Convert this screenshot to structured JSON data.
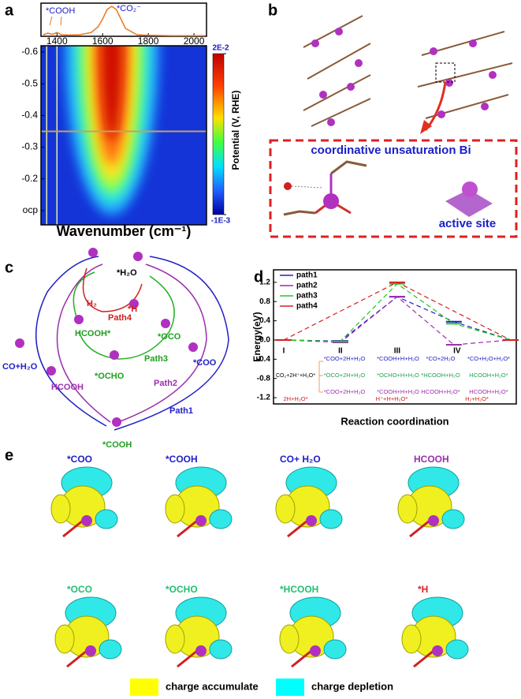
{
  "panel_labels": [
    "a",
    "b",
    "c",
    "d",
    "e"
  ],
  "chart_data": [
    {
      "type": "line",
      "annotations": [
        "*COOH",
        "*CO₂⁻"
      ],
      "x": [
        1340,
        1360,
        1380,
        1400,
        1420,
        1450,
        1500,
        1550,
        1580,
        1600,
        1620,
        1640,
        1660,
        1680,
        1700,
        1750,
        1800,
        1900,
        2000,
        2050
      ],
      "values": [
        0.05,
        0.1,
        0.06,
        0.12,
        0.05,
        0.04,
        0.05,
        0.12,
        0.3,
        0.55,
        0.85,
        0.95,
        0.85,
        0.55,
        0.25,
        0.05,
        0.03,
        0.02,
        0.02,
        0.02
      ],
      "color": "#e87722",
      "xlim": [
        1330,
        2055
      ],
      "ylim": [
        0,
        1.05
      ],
      "xticks": [
        1400,
        1600,
        1800,
        2000
      ]
    },
    {
      "type": "heatmap",
      "xlabel": "Wavenumber (cm⁻¹)",
      "ylabel": "Potential (V, RHE)",
      "xlim": [
        1330,
        2055
      ],
      "ylim": [
        -0.055,
        -0.62
      ],
      "yticks": [
        -0.6,
        -0.5,
        -0.4,
        -0.3,
        -0.2,
        {
          "value": -0.1,
          "label": "ocp"
        }
      ],
      "clim": [
        -0.001,
        0.02
      ],
      "cticks": [
        {
          "value": 0.02,
          "label": "2E-2"
        },
        {
          "value": -0.001,
          "label": "-1E-3"
        }
      ]
    },
    {
      "type": "energy",
      "xlabel": "Reaction coordination",
      "ylabel": "Energy(eV)",
      "xlim": [
        0.82,
        5.1
      ],
      "ylim": [
        -1.33,
        1.46
      ],
      "yticks": [
        1.2,
        0.8,
        0.4,
        {
          "value": 0,
          "label": "0.0"
        },
        -0.4,
        -0.8,
        -1.2
      ],
      "legend": "upper left",
      "series": [
        {
          "name": "path1",
          "color": "#2020c8",
          "x": [
            1,
            2,
            3,
            4,
            5
          ],
          "values": [
            0,
            -0.02,
            0.9,
            0.38,
            0
          ]
        },
        {
          "name": "path2",
          "color": "#9b2fae",
          "x": [
            1,
            2,
            3,
            4,
            5
          ],
          "values": [
            0,
            -0.05,
            0.9,
            -0.1,
            0
          ]
        },
        {
          "name": "path3",
          "color": "#20c820",
          "x": [
            1,
            2,
            3,
            4,
            5
          ],
          "values": [
            0,
            -0.03,
            1.17,
            0.34,
            0
          ]
        },
        {
          "name": "path4",
          "color": "#d62020",
          "x": [
            1,
            3,
            5
          ],
          "values": [
            0,
            1.2,
            0
          ]
        }
      ],
      "states": [
        "I",
        "II",
        "III",
        "IV"
      ],
      "initial": "CO₂+2H⁺+H₂O*",
      "rows": [
        [
          "*COO+2H+H₂O",
          "*COOH+H+H₂O",
          "*CO+2H₂O",
          "*CO+H₂O+H₂O*"
        ],
        [
          "*OCO+2H+H₂O",
          "*OCHO+H+H₂O",
          "*HCOOH+H₂O",
          "HCOOH+H₂O*"
        ],
        [
          "*COO+2H+H₂O",
          "*COOH+H+H₂O",
          "HCOOH+H₂O*",
          "HCOOH+H₂O*"
        ]
      ],
      "red_row": [
        "2H+H₂O*",
        "H⁺+H+H₂O*",
        "H₂+H₂O*"
      ]
    }
  ],
  "panel_b": {
    "title": "coordinative unsaturation Bi",
    "site": "active site"
  },
  "panel_c": {
    "labels": [
      "*H₂O",
      "Path4",
      "*H",
      "H₂",
      "HCOOH*",
      "*OCO",
      "Path3",
      "*OCHO",
      "CO+H₂O",
      "HCOOH",
      "Path2",
      "*COO",
      "Path1",
      "*COOH"
    ]
  },
  "panel_e": {
    "row1": [
      "*COO",
      "*COOH",
      "CO+ H₂O",
      "HCOOH"
    ],
    "row2": [
      "*OCO",
      "*OCHO",
      "*HCOOH",
      "*H"
    ],
    "legend": [
      "charge accumulate",
      "charge depletion"
    ]
  }
}
